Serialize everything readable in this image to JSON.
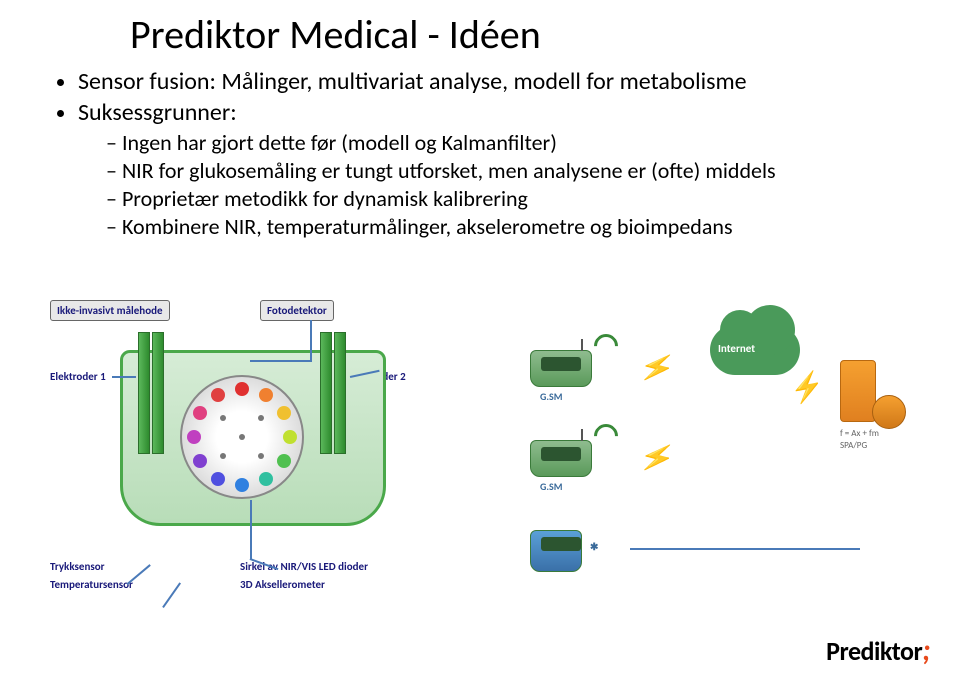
{
  "title": "Prediktor Medical - Idéen",
  "bullets": [
    {
      "text": "Sensor fusion: Målinger, multivariat analyse, modell for metabolisme"
    },
    {
      "text": "Suksessgrunner:",
      "sub": [
        "Ingen har gjort dette før (modell og Kalmanfilter)",
        "NIR for glukosemåling er tungt utforsket, men analysene er (ofte) middels",
        "Proprietær metodikk for dynamisk kalibrering",
        "Kombinere NIR, temperaturmålinger, akselerometre og bioimpedans"
      ]
    }
  ],
  "diagram": {
    "labels": {
      "probe": "Ikke-invasivt målehode",
      "photodetector": "Fotodetektor",
      "electrodes1": "Elektroder 1",
      "electrodes2": "Elektroder 2",
      "pressure": "Trykksensor",
      "temperature": "Temperatursensor",
      "ledring1": "Sirkel av NIR/VIS LED dioder",
      "ledring2": "3D Aksellerometer",
      "internet": "Internet",
      "gsm": "G.SM",
      "serverFormula": "f = Ax + fm",
      "serverSub": "SPA/PG"
    },
    "led_colors": [
      "#e03030",
      "#f08030",
      "#f0c030",
      "#c0e030",
      "#50c050",
      "#30c0a0",
      "#3080e0",
      "#5050e0",
      "#8040d0",
      "#c040c0",
      "#e04080",
      "#e04040"
    ],
    "electrode_positions": [
      88,
      102,
      270,
      284
    ]
  },
  "logo": {
    "text": "Prediktor",
    "accent": ";"
  }
}
